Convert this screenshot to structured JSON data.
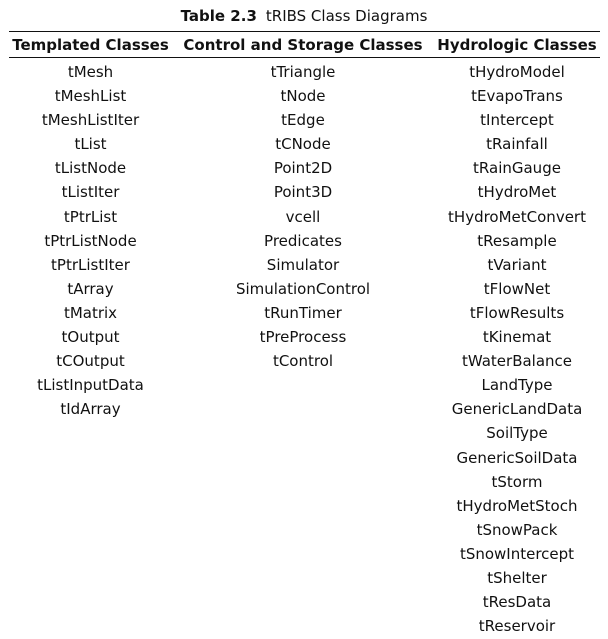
{
  "caption": {
    "label": "Table 2.3",
    "title": "tRIBS Class Diagrams"
  },
  "table": {
    "headers": [
      "Templated Classes",
      "Control and Storage Classes",
      "Hydrologic Classes"
    ],
    "columns": [
      [
        "tMesh",
        "tMeshList",
        "tMeshListIter",
        "tList",
        "tListNode",
        "tListIter",
        "tPtrList",
        "tPtrListNode",
        "tPtrListIter",
        "tArray",
        "tMatrix",
        "tOutput",
        "tCOutput",
        "tListInputData",
        "tIdArray"
      ],
      [
        "tTriangle",
        "tNode",
        "tEdge",
        "tCNode",
        "Point2D",
        "Point3D",
        "vcell",
        "Predicates",
        "Simulator",
        "SimulationControl",
        "tRunTimer",
        "tPreProcess",
        "tControl"
      ],
      [
        "tHydroModel",
        "tEvapoTrans",
        "tIntercept",
        "tRainfall",
        "tRainGauge",
        "tHydroMet",
        "tHydroMetConvert",
        "tResample",
        "tVariant",
        "tFlowNet",
        "tFlowResults",
        "tKinemat",
        "tWaterBalance",
        "LandType",
        "GenericLandData",
        "SoilType",
        "GenericSoilData",
        "tStorm",
        "tHydroMetStoch",
        "tSnowPack",
        "tSnowIntercept",
        "tShelter",
        "tResData",
        "tReservoir"
      ]
    ]
  }
}
